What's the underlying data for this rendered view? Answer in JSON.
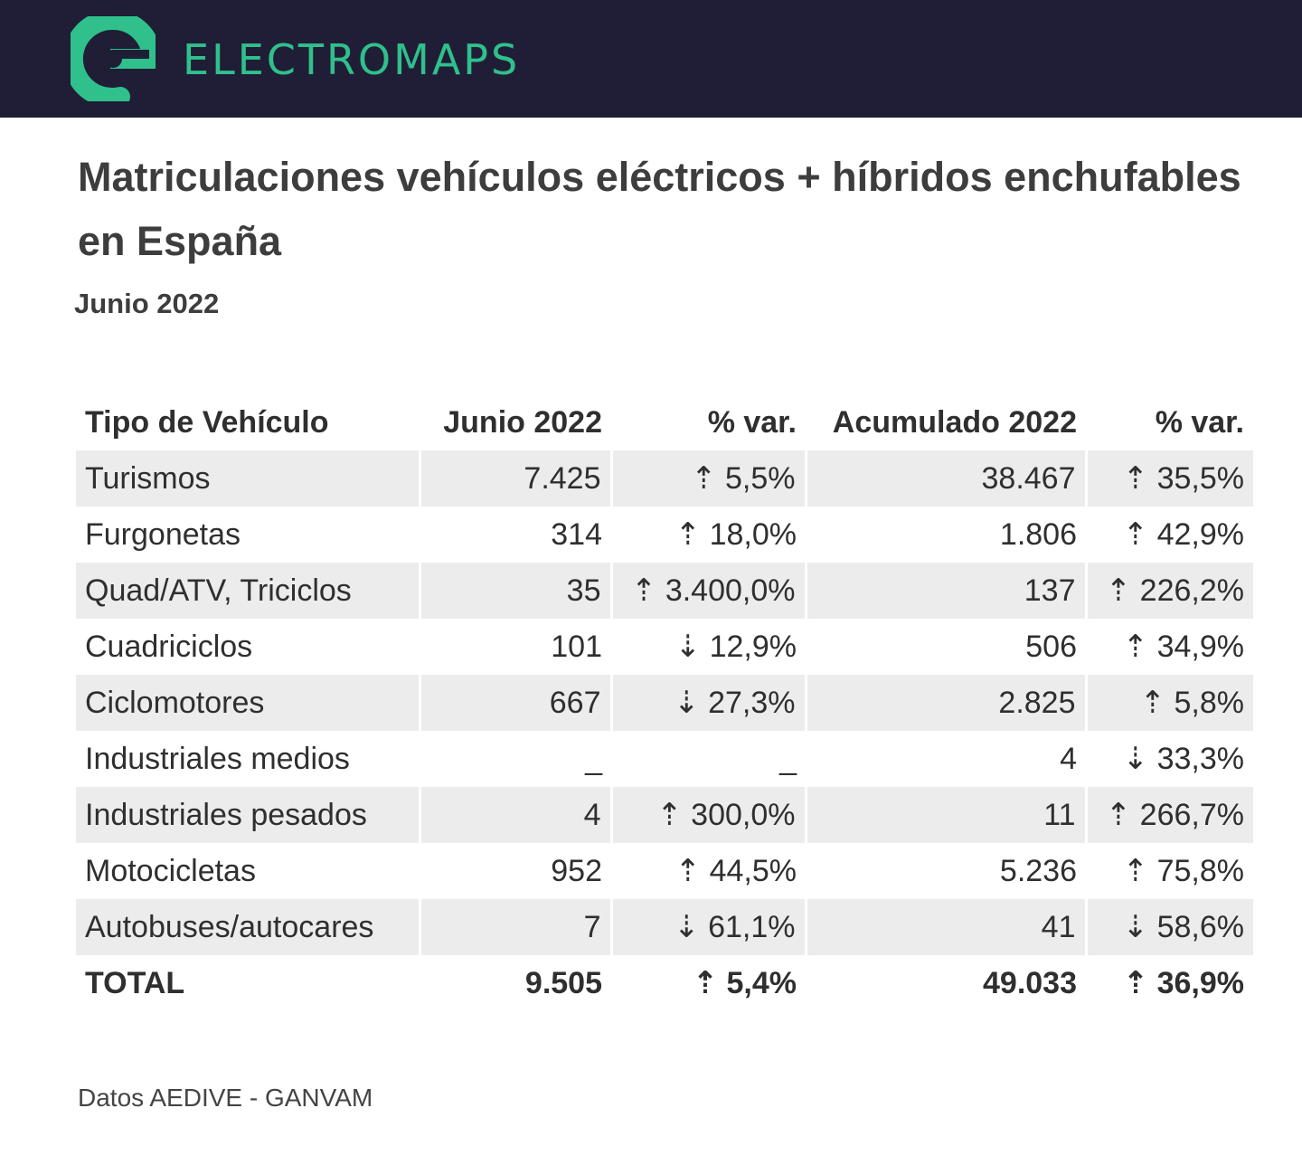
{
  "brand": {
    "name": "ELECTROMAPS",
    "colors": {
      "header_bg": "#201e36",
      "accent": "#2fc08c"
    }
  },
  "title": "Matriculaciones vehículos eléctricos + híbridos enchufables en España",
  "subtitle": "Junio 2022",
  "table": {
    "headers": [
      "Tipo de Vehículo",
      "Junio 2022",
      "% var.",
      "Acumulado 2022",
      "% var."
    ],
    "rows": [
      {
        "tipo": "Turismos",
        "junio": "7.425",
        "var_junio": "⇡ 5,5%",
        "acumulado": "38.467",
        "var_acumulado": "⇡ 35,5%"
      },
      {
        "tipo": "Furgonetas",
        "junio": "314",
        "var_junio": "⇡ 18,0%",
        "acumulado": "1.806",
        "var_acumulado": "⇡ 42,9%"
      },
      {
        "tipo": "Quad/ATV, Triciclos",
        "junio": "35",
        "var_junio": "⇡ 3.400,0%",
        "acumulado": "137",
        "var_acumulado": "⇡ 226,2%"
      },
      {
        "tipo": "Cuadriciclos",
        "junio": "101",
        "var_junio": "⇣ 12,9%",
        "acumulado": "506",
        "var_acumulado": "⇡ 34,9%"
      },
      {
        "tipo": "Ciclomotores",
        "junio": "667",
        "var_junio": "⇣ 27,3%",
        "acumulado": "2.825",
        "var_acumulado": "⇡ 5,8%"
      },
      {
        "tipo": "Industriales medios",
        "junio": "_",
        "var_junio": "_",
        "acumulado": "4",
        "var_acumulado": "⇣ 33,3%"
      },
      {
        "tipo": "Industriales pesados",
        "junio": "4",
        "var_junio": "⇡ 300,0%",
        "acumulado": "11",
        "var_acumulado": "⇡ 266,7%"
      },
      {
        "tipo": "Motocicletas",
        "junio": "952",
        "var_junio": "⇡ 44,5%",
        "acumulado": "5.236",
        "var_acumulado": "⇡ 75,8%"
      },
      {
        "tipo": "Autobuses/autocares",
        "junio": "7",
        "var_junio": "⇣ 61,1%",
        "acumulado": "41",
        "var_acumulado": "⇣ 58,6%"
      }
    ],
    "total": {
      "tipo": "TOTAL",
      "junio": "9.505",
      "var_junio": "⇡ 5,4%",
      "acumulado": "49.033",
      "var_acumulado": "⇡ 36,9%"
    }
  },
  "source": "Datos AEDIVE - GANVAM"
}
